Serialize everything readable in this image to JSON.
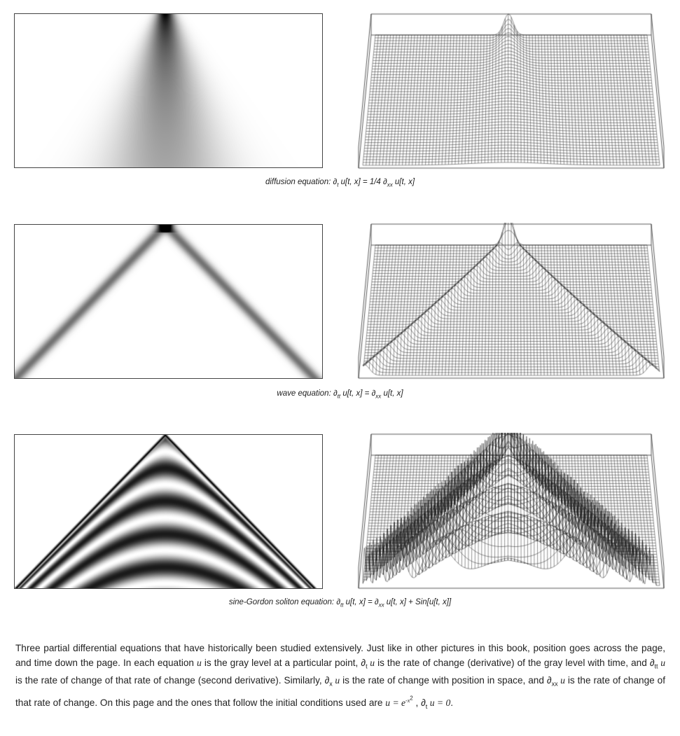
{
  "panels": [
    {
      "id": "diffusion",
      "caption_name": "diffusion equation:",
      "caption_lhs_op": "∂",
      "caption_lhs_sub": "t",
      "caption_lhs_rest": " u[t, x] = 1/4 ",
      "caption_rhs_op": "∂",
      "caption_rhs_sub": "xx",
      "caption_rhs_rest": " u[t, x]"
    },
    {
      "id": "wave",
      "caption_name": "wave equation:",
      "caption_lhs_op": "∂",
      "caption_lhs_sub": "tt",
      "caption_lhs_rest": " u[t, x] = ",
      "caption_rhs_op": "∂",
      "caption_rhs_sub": "xx",
      "caption_rhs_rest": " u[t, x]"
    },
    {
      "id": "sine-gordon",
      "caption_name": "sine-Gordon soliton equation:",
      "caption_lhs_op": "∂",
      "caption_lhs_sub": "tt",
      "caption_lhs_rest": " u[t, x] = ",
      "caption_rhs_op": "∂",
      "caption_rhs_sub": "xx",
      "caption_rhs_rest": " u[t, x] + Sin[u[t, x]]"
    }
  ],
  "description": {
    "p1": "Three partial differential equations that have historically been studied extensively. Just like in other pictures in this book, position goes across the page, and time down the page. In each equation ",
    "u1": "u",
    "p2": " is the gray level at a particular point, ",
    "d1": "∂",
    "d1_sub": "t",
    "d1_u": " u",
    "p3": " is the rate of change (derivative) of the gray level with time, and ",
    "d2": "∂",
    "d2_sub": "tt",
    "d2_u": " u",
    "p4": " is the rate of change of that rate of change (second derivative). Similarly, ",
    "d3": "∂",
    "d3_sub": "x",
    "d3_u": " u",
    "p5": " is the rate of change with position in space, and ",
    "d4": "∂",
    "d4_sub": "xx",
    "d4_u": " u",
    "p6": " is the rate of change of that rate of change. On this page and the ones that follow the initial conditions used are ",
    "ic1": "u = e",
    "ic1_sup": "-x",
    "ic1_sup2": "2",
    "ic_sep": " , ",
    "ic2": "∂",
    "ic2_sub": "t",
    "ic2_rest": " u = 0",
    "end": "."
  }
}
